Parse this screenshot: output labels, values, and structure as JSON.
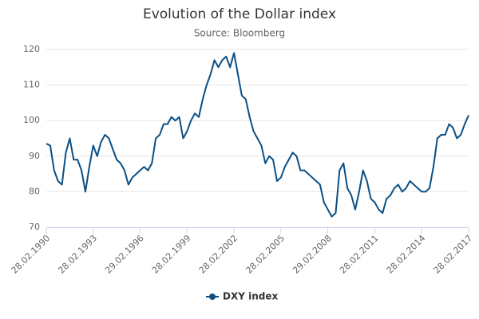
{
  "chart_data": {
    "type": "line",
    "title": "Evolution of the Dollar index",
    "subtitle": "Source: Bloomberg",
    "categories": [
      "28.02.1990",
      null,
      null,
      null,
      null,
      null,
      null,
      null,
      null,
      null,
      null,
      null,
      "28.02.1993",
      null,
      null,
      null,
      null,
      null,
      null,
      null,
      null,
      null,
      null,
      null,
      "29.02.1996",
      null,
      null,
      null,
      null,
      null,
      null,
      null,
      null,
      null,
      null,
      null,
      "28.02.1999",
      null,
      null,
      null,
      null,
      null,
      null,
      null,
      null,
      null,
      null,
      null,
      "28.02.2002",
      null,
      null,
      null,
      null,
      null,
      null,
      null,
      null,
      null,
      null,
      null,
      "28.02.2005",
      null,
      null,
      null,
      null,
      null,
      null,
      null,
      null,
      null,
      null,
      null,
      "29.02.2008",
      null,
      null,
      null,
      null,
      null,
      null,
      null,
      null,
      null,
      null,
      null,
      "28.02.2011",
      null,
      null,
      null,
      null,
      null,
      null,
      null,
      null,
      null,
      null,
      null,
      "28.02.2014",
      null,
      null,
      null,
      null,
      null,
      null,
      null,
      null,
      null,
      null,
      null,
      "28.02.2017"
    ],
    "series": [
      {
        "name": "DXY index",
        "color": "#0b4f84",
        "values": [
          93.5,
          93,
          86,
          83,
          82,
          91,
          95,
          89,
          89,
          86,
          80,
          87,
          93,
          90,
          94,
          96,
          95,
          92,
          89,
          88,
          86,
          82,
          84,
          85,
          86,
          87,
          86,
          88,
          95,
          96,
          99,
          99,
          101,
          100,
          101,
          95,
          97,
          100,
          102,
          101,
          106,
          110,
          113,
          117,
          115,
          117,
          118,
          115,
          119,
          113,
          107,
          106,
          101,
          97,
          95,
          93,
          88,
          90,
          89,
          83,
          84,
          87,
          89,
          91,
          90,
          86,
          86,
          85,
          84,
          83,
          82,
          77,
          75,
          73,
          74,
          86,
          88,
          81,
          79,
          75,
          80,
          86,
          83,
          78,
          77,
          75,
          74,
          78,
          79,
          81,
          82,
          80,
          81,
          83,
          82,
          81,
          80,
          80,
          81,
          87,
          95,
          96,
          96,
          99,
          98,
          95,
          96,
          99,
          101.5
        ]
      }
    ],
    "ylim": [
      70,
      120
    ],
    "yticks": [
      70,
      80,
      90,
      100,
      110,
      120
    ],
    "grid": true,
    "legend": "bottom"
  }
}
